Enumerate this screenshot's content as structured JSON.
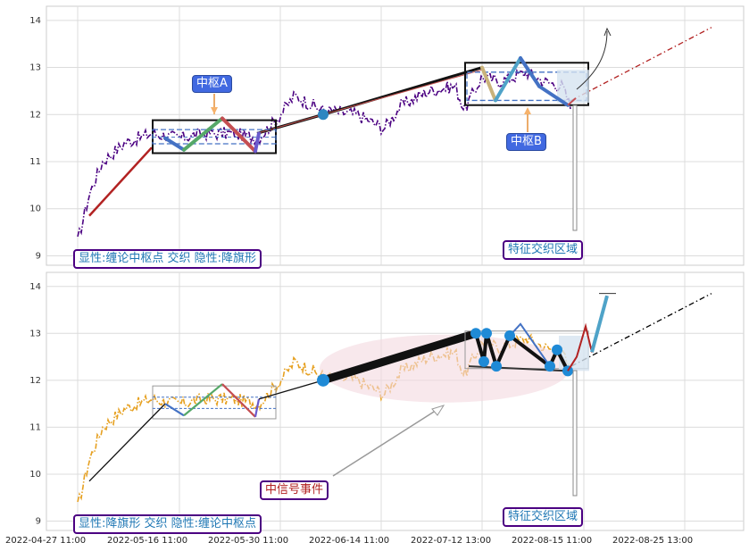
{
  "chart_data": [
    {
      "type": "line",
      "panel": "top",
      "ylim": [
        8.8,
        14.3
      ],
      "yticks": [
        "9",
        "10",
        "11",
        "12",
        "13",
        "14"
      ],
      "x_tick_labels": [
        "2022-04-27 11:00",
        "2022-05-16 11:00",
        "2022-05-30 11:00",
        "2022-06-14 11:00",
        "2022-07-12 13:00",
        "2022-08-15 11:00",
        "2022-08-25 13:00"
      ],
      "grid": true,
      "annotations": {
        "pivot_a": "中枢A",
        "pivot_b": "中枢B",
        "feature_zone": "特征交织区域",
        "summary": "显性:缠论中枢点 交织 隐性:降旗形"
      },
      "price_line_color": "#4b0082",
      "price_line_style": "dash-dot",
      "stroke_color": "#b22222",
      "pivot_box_color": "#000000",
      "pivot_mid_color": "#4472c4",
      "segment_colors": [
        "#4472c4",
        "#55a868",
        "#c44e52",
        "#6a5acd",
        "#4fa3c8",
        "#c9b27a"
      ]
    },
    {
      "type": "line",
      "panel": "bottom",
      "ylim": [
        8.8,
        14.3
      ],
      "yticks": [
        "9",
        "10",
        "11",
        "12",
        "13",
        "14"
      ],
      "grid": true,
      "annotations": {
        "signal_event": "中信号事件",
        "feature_zone": "特征交织区域",
        "summary": "显性:降旗形 交织 隐性:缠论中枢点"
      },
      "price_line_color": "#e6a020",
      "price_line_style": "dash-dot",
      "ellipse_color": "#f4d9df",
      "node_color": "#1f8ad6",
      "trend_line_color": "#000000"
    }
  ],
  "x_axis": {
    "labels": [
      "2022-04-27 11:00",
      "2022-05-16 11:00",
      "2022-05-30 11:00",
      "2022-06-14 11:00",
      "2022-07-12 13:00",
      "2022-08-15 11:00",
      "2022-08-25 13:00"
    ]
  },
  "labels": {
    "top_pivot_a": "中枢A",
    "top_pivot_b": "中枢B",
    "top_zone": "特征交织区域",
    "top_summary": "显性:缠论中枢点 交织 隐性:降旗形",
    "bottom_signal": "中信号事件",
    "bottom_zone": "特征交织区域",
    "bottom_summary": "显性:降旗形 交织 隐性:缠论中枢点"
  }
}
